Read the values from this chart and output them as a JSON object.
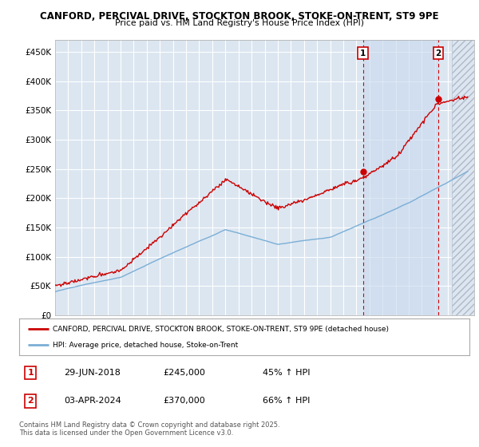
{
  "title_line1": "CANFORD, PERCIVAL DRIVE, STOCKTON BROOK, STOKE-ON-TRENT, ST9 9PE",
  "title_line2": "Price paid vs. HM Land Registry's House Price Index (HPI)",
  "ylabel_ticks": [
    "£0",
    "£50K",
    "£100K",
    "£150K",
    "£200K",
    "£250K",
    "£300K",
    "£350K",
    "£400K",
    "£450K"
  ],
  "ytick_vals": [
    0,
    50000,
    100000,
    150000,
    200000,
    250000,
    300000,
    350000,
    400000,
    450000
  ],
  "ylim": [
    0,
    470000
  ],
  "xlim_start": 1995.0,
  "xlim_end": 2027.0,
  "background_color": "#dce6f1",
  "line1_color": "#cc0000",
  "line2_color": "#7aaed6",
  "grid_color": "#ffffff",
  "legend_line1": "CANFORD, PERCIVAL DRIVE, STOCKTON BROOK, STOKE-ON-TRENT, ST9 9PE (detached house)",
  "legend_line2": "HPI: Average price, detached house, Stoke-on-Trent",
  "marker1_label": "1",
  "marker1_x": 2018.5,
  "marker1_y": 245000,
  "marker1_date": "29-JUN-2018",
  "marker1_price": "£245,000",
  "marker1_hpi": "45% ↑ HPI",
  "marker2_label": "2",
  "marker2_x": 2024.25,
  "marker2_y": 370000,
  "marker2_date": "03-APR-2024",
  "marker2_price": "£370,000",
  "marker2_hpi": "66% ↑ HPI",
  "footer": "Contains HM Land Registry data © Crown copyright and database right 2025.\nThis data is licensed under the Open Government Licence v3.0.",
  "dashed_x1": 2018.5,
  "dashed_x2": 2024.25,
  "shade_mid_x1": 2018.5,
  "shade_mid_x2": 2024.25,
  "hatch_x_start": 2025.3
}
